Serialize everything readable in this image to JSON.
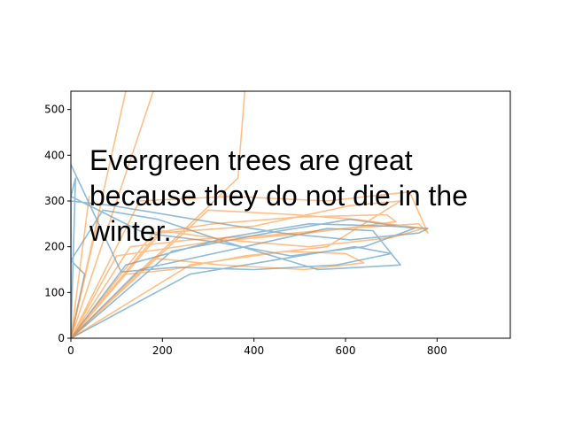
{
  "chart_data": {
    "type": "line",
    "title": "",
    "xlabel": "",
    "ylabel": "",
    "xlim": [
      0,
      960
    ],
    "ylim": [
      0,
      540
    ],
    "xticks": [
      "0",
      "200",
      "400",
      "600",
      "800"
    ],
    "yticks": [
      "0",
      "100",
      "200",
      "300",
      "400",
      "500"
    ],
    "grid": false,
    "legend": "none",
    "annotation_lines": [
      "Evergreen trees are great",
      "because they do not die in the",
      "winter."
    ],
    "series": [
      {
        "color": "#1f77b4",
        "alpha": 0.5,
        "x": [
          0,
          120,
          340,
          520,
          700,
          780,
          760,
          610,
          460,
          300,
          180,
          90,
          0,
          0,
          150,
          380,
          560,
          660,
          720,
          540,
          340,
          190,
          70,
          0,
          30,
          0,
          220,
          430,
          610,
          750,
          640,
          480,
          320,
          160,
          0,
          10,
          0,
          260,
          470,
          620,
          700,
          580,
          400,
          230,
          110,
          0
        ],
        "y": [
          0,
          160,
          220,
          250,
          245,
          240,
          230,
          215,
          230,
          255,
          275,
          290,
          300,
          0,
          150,
          200,
          240,
          235,
          160,
          150,
          210,
          260,
          280,
          170,
          140,
          0,
          190,
          230,
          260,
          240,
          200,
          180,
          210,
          230,
          310,
          350,
          0,
          140,
          175,
          200,
          185,
          160,
          150,
          155,
          145,
          380
        ]
      },
      {
        "color": "#ff7f0e",
        "alpha": 0.5,
        "x": [
          0,
          40,
          0,
          120,
          0,
          180,
          380,
          365,
          0,
          150,
          350,
          560,
          740,
          780,
          760,
          600,
          430,
          260,
          130,
          0,
          100,
          300,
          520,
          710,
          690,
          500,
          310,
          180,
          0,
          190,
          400,
          610,
          720,
          560,
          380,
          220,
          120,
          0,
          260,
          470,
          600,
          640,
          510,
          330,
          180,
          0,
          60,
          0,
          300,
          490,
          620,
          770,
          700,
          520,
          340,
          200,
          0
        ],
        "y": [
          0,
          310,
          0,
          540,
          0,
          540,
          540,
          350,
          0,
          300,
          310,
          300,
          320,
          230,
          250,
          240,
          225,
          215,
          200,
          0,
          180,
          210,
          230,
          255,
          270,
          265,
          250,
          230,
          0,
          230,
          245,
          290,
          300,
          200,
          180,
          150,
          140,
          0,
          160,
          190,
          185,
          165,
          150,
          160,
          175,
          0,
          260,
          0,
          280,
          270,
          260,
          240,
          220,
          200,
          215,
          235,
          0
        ]
      }
    ]
  }
}
